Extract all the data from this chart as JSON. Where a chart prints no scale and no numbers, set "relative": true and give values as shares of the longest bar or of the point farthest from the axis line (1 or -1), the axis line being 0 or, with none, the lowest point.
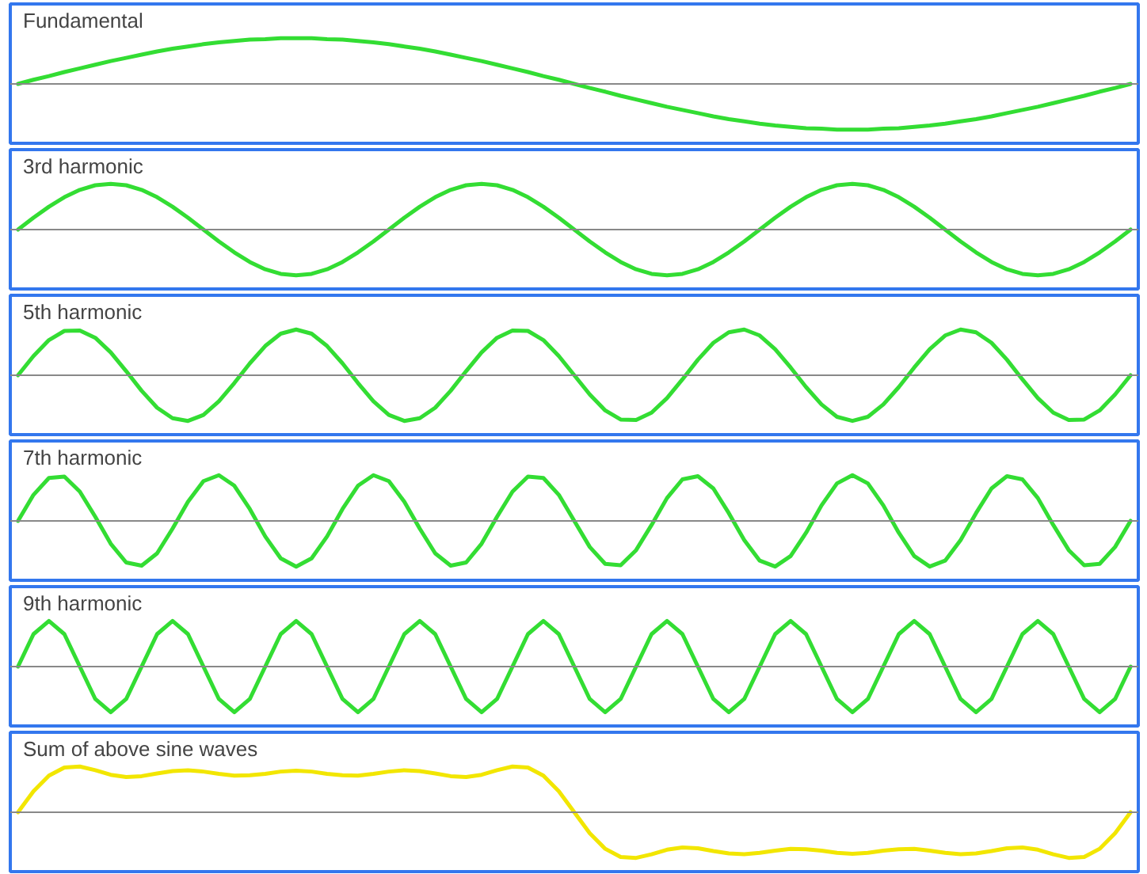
{
  "chart_data": [
    {
      "type": "line",
      "title": "Fundamental",
      "relative": true,
      "categories": [
        null,
        null,
        null,
        null,
        null,
        null,
        null,
        null,
        null,
        null,
        null,
        null,
        null,
        null,
        null,
        null,
        null,
        null,
        null,
        null,
        null,
        null,
        null,
        null,
        null,
        null,
        null,
        null,
        null,
        null,
        null,
        null,
        null,
        null,
        null,
        null,
        null,
        null,
        null,
        null,
        null,
        null,
        null,
        null,
        null,
        null,
        null,
        null,
        null,
        null,
        null,
        null,
        null,
        null,
        null,
        null,
        null,
        null,
        null,
        null,
        null,
        null,
        null,
        null,
        null,
        null,
        null,
        null,
        null,
        null,
        null,
        null,
        null
      ],
      "series": [
        {
          "color": "#33dd33",
          "values": [
            0,
            0.09,
            0.17,
            0.26,
            0.34,
            0.42,
            0.5,
            0.57,
            0.64,
            0.71,
            0.77,
            0.82,
            0.87,
            0.91,
            0.94,
            0.97,
            0.98,
            1,
            1,
            1,
            0.98,
            0.97,
            0.94,
            0.91,
            0.87,
            0.82,
            0.77,
            0.71,
            0.64,
            0.57,
            0.5,
            0.42,
            0.34,
            0.26,
            0.17,
            0.09,
            0,
            -0.09,
            -0.17,
            -0.26,
            -0.34,
            -0.42,
            -0.5,
            -0.57,
            -0.64,
            -0.71,
            -0.77,
            -0.82,
            -0.87,
            -0.91,
            -0.94,
            -0.97,
            -0.98,
            -1,
            -1,
            -1,
            -0.98,
            -0.97,
            -0.94,
            -0.91,
            -0.87,
            -0.82,
            -0.77,
            -0.71,
            -0.64,
            -0.57,
            -0.5,
            -0.42,
            -0.34,
            -0.26,
            -0.17,
            -0.09,
            0
          ]
        }
      ]
    },
    {
      "type": "line",
      "title": "3rd harmonic",
      "relative": true,
      "categories": [
        null,
        null,
        null,
        null,
        null,
        null,
        null,
        null,
        null,
        null,
        null,
        null,
        null,
        null,
        null,
        null,
        null,
        null,
        null,
        null,
        null,
        null,
        null,
        null,
        null,
        null,
        null,
        null,
        null,
        null,
        null,
        null,
        null,
        null,
        null,
        null,
        null,
        null,
        null,
        null,
        null,
        null,
        null,
        null,
        null,
        null,
        null,
        null,
        null,
        null,
        null,
        null,
        null,
        null,
        null,
        null,
        null,
        null,
        null,
        null,
        null,
        null,
        null,
        null,
        null,
        null,
        null,
        null,
        null,
        null,
        null,
        null,
        null
      ],
      "series": [
        {
          "color": "#33dd33",
          "values": [
            0,
            0.26,
            0.5,
            0.71,
            0.87,
            0.97,
            1,
            0.97,
            0.87,
            0.71,
            0.5,
            0.26,
            0,
            -0.26,
            -0.5,
            -0.71,
            -0.87,
            -0.97,
            -1,
            -0.97,
            -0.87,
            -0.71,
            -0.5,
            -0.26,
            0,
            0.26,
            0.5,
            0.71,
            0.87,
            0.97,
            1,
            0.97,
            0.87,
            0.71,
            0.5,
            0.26,
            0,
            -0.26,
            -0.5,
            -0.71,
            -0.87,
            -0.97,
            -1,
            -0.97,
            -0.87,
            -0.71,
            -0.5,
            -0.26,
            0,
            0.26,
            0.5,
            0.71,
            0.87,
            0.97,
            1,
            0.97,
            0.87,
            0.71,
            0.5,
            0.26,
            0,
            -0.26,
            -0.5,
            -0.71,
            -0.87,
            -0.97,
            -1,
            -0.97,
            -0.87,
            -0.71,
            -0.5,
            -0.26,
            0
          ]
        }
      ]
    },
    {
      "type": "line",
      "title": "5th harmonic",
      "relative": true,
      "categories": [
        null,
        null,
        null,
        null,
        null,
        null,
        null,
        null,
        null,
        null,
        null,
        null,
        null,
        null,
        null,
        null,
        null,
        null,
        null,
        null,
        null,
        null,
        null,
        null,
        null,
        null,
        null,
        null,
        null,
        null,
        null,
        null,
        null,
        null,
        null,
        null,
        null,
        null,
        null,
        null,
        null,
        null,
        null,
        null,
        null,
        null,
        null,
        null,
        null,
        null,
        null,
        null,
        null,
        null,
        null,
        null,
        null,
        null,
        null,
        null,
        null,
        null,
        null,
        null,
        null,
        null,
        null,
        null,
        null,
        null,
        null,
        null,
        null
      ],
      "series": [
        {
          "color": "#33dd33",
          "values": [
            0,
            0.42,
            0.77,
            0.97,
            0.98,
            0.82,
            0.5,
            0.09,
            -0.34,
            -0.71,
            -0.94,
            -1,
            -0.87,
            -0.57,
            -0.17,
            0.26,
            0.64,
            0.91,
            1,
            0.91,
            0.64,
            0.26,
            -0.17,
            -0.57,
            -0.87,
            -1,
            -0.94,
            -0.71,
            -0.34,
            0.09,
            0.5,
            0.82,
            0.98,
            0.97,
            0.77,
            0.42,
            0,
            -0.42,
            -0.77,
            -0.97,
            -0.98,
            -0.82,
            -0.5,
            -0.09,
            0.34,
            0.71,
            0.94,
            1,
            0.87,
            0.57,
            0.17,
            -0.26,
            -0.64,
            -0.91,
            -1,
            -0.91,
            -0.64,
            -0.26,
            0.17,
            0.57,
            0.87,
            1,
            0.94,
            0.71,
            0.34,
            -0.09,
            -0.5,
            -0.82,
            -0.98,
            -0.97,
            -0.77,
            -0.42,
            0
          ]
        }
      ]
    },
    {
      "type": "line",
      "title": "7th harmonic",
      "relative": true,
      "categories": [
        null,
        null,
        null,
        null,
        null,
        null,
        null,
        null,
        null,
        null,
        null,
        null,
        null,
        null,
        null,
        null,
        null,
        null,
        null,
        null,
        null,
        null,
        null,
        null,
        null,
        null,
        null,
        null,
        null,
        null,
        null,
        null,
        null,
        null,
        null,
        null,
        null,
        null,
        null,
        null,
        null,
        null,
        null,
        null,
        null,
        null,
        null,
        null,
        null,
        null,
        null,
        null,
        null,
        null,
        null,
        null,
        null,
        null,
        null,
        null,
        null,
        null,
        null,
        null,
        null,
        null,
        null,
        null,
        null,
        null,
        null,
        null,
        null
      ],
      "series": [
        {
          "color": "#33dd33",
          "values": [
            0,
            0.57,
            0.94,
            0.97,
            0.64,
            0.09,
            -0.5,
            -0.91,
            -0.98,
            -0.71,
            -0.17,
            0.42,
            0.87,
            1,
            0.77,
            0.26,
            -0.34,
            -0.82,
            -1,
            -0.82,
            -0.34,
            0.26,
            0.77,
            1,
            0.87,
            0.42,
            -0.17,
            -0.71,
            -0.98,
            -0.91,
            -0.5,
            0.09,
            0.64,
            0.97,
            0.94,
            0.57,
            0,
            -0.57,
            -0.94,
            -0.97,
            -0.64,
            -0.09,
            0.5,
            0.91,
            0.98,
            0.71,
            0.17,
            -0.42,
            -0.87,
            -1,
            -0.77,
            -0.26,
            0.34,
            0.82,
            1,
            0.82,
            0.34,
            -0.26,
            -0.77,
            -1,
            -0.87,
            -0.42,
            0.17,
            0.71,
            0.98,
            0.91,
            0.5,
            -0.09,
            -0.64,
            -0.97,
            -0.94,
            -0.57,
            0
          ]
        }
      ]
    },
    {
      "type": "line",
      "title": "9th harmonic",
      "relative": true,
      "categories": [
        null,
        null,
        null,
        null,
        null,
        null,
        null,
        null,
        null,
        null,
        null,
        null,
        null,
        null,
        null,
        null,
        null,
        null,
        null,
        null,
        null,
        null,
        null,
        null,
        null,
        null,
        null,
        null,
        null,
        null,
        null,
        null,
        null,
        null,
        null,
        null,
        null,
        null,
        null,
        null,
        null,
        null,
        null,
        null,
        null,
        null,
        null,
        null,
        null,
        null,
        null,
        null,
        null,
        null,
        null,
        null,
        null,
        null,
        null,
        null,
        null,
        null,
        null,
        null,
        null,
        null,
        null,
        null,
        null,
        null,
        null,
        null,
        null
      ],
      "series": [
        {
          "color": "#33dd33",
          "values": [
            0,
            0.71,
            1,
            0.71,
            0,
            -0.71,
            -1,
            -0.71,
            0,
            0.71,
            1,
            0.71,
            0,
            -0.71,
            -1,
            -0.71,
            0,
            0.71,
            1,
            0.71,
            0,
            -0.71,
            -1,
            -0.71,
            0,
            0.71,
            1,
            0.71,
            0,
            -0.71,
            -1,
            -0.71,
            0,
            0.71,
            1,
            0.71,
            0,
            -0.71,
            -1,
            -0.71,
            0,
            0.71,
            1,
            0.71,
            0,
            -0.71,
            -1,
            -0.71,
            0,
            0.71,
            1,
            0.71,
            0,
            -0.71,
            -1,
            -0.71,
            0,
            0.71,
            1,
            0.71,
            0,
            -0.71,
            -1,
            -0.71,
            0,
            0.71,
            1,
            0.71,
            0,
            -0.71,
            -1,
            -0.71,
            0
          ]
        }
      ]
    },
    {
      "type": "line",
      "title": "Sum of above sine waves",
      "relative": true,
      "categories": [
        null,
        null,
        null,
        null,
        null,
        null,
        null,
        null,
        null,
        null,
        null,
        null,
        null,
        null,
        null,
        null,
        null,
        null,
        null,
        null,
        null,
        null,
        null,
        null,
        null,
        null,
        null,
        null,
        null,
        null,
        null,
        null,
        null,
        null,
        null,
        null,
        null,
        null,
        null,
        null,
        null,
        null,
        null,
        null,
        null,
        null,
        null,
        null,
        null,
        null,
        null,
        null,
        null,
        null,
        null,
        null,
        null,
        null,
        null,
        null,
        null,
        null,
        null,
        null,
        null,
        null,
        null,
        null,
        null,
        null,
        null,
        null,
        null
      ],
      "series": [
        {
          "color": "#f2e600",
          "values": [
            0,
            0.46,
            0.8,
            0.98,
            1,
            0.92,
            0.82,
            0.77,
            0.79,
            0.85,
            0.9,
            0.92,
            0.89,
            0.84,
            0.8,
            0.81,
            0.84,
            0.89,
            0.91,
            0.89,
            0.84,
            0.81,
            0.8,
            0.84,
            0.89,
            0.92,
            0.9,
            0.85,
            0.79,
            0.77,
            0.82,
            0.92,
            1,
            0.98,
            0.8,
            0.46,
            0,
            -0.46,
            -0.8,
            -0.98,
            -1,
            -0.92,
            -0.82,
            -0.77,
            -0.79,
            -0.85,
            -0.9,
            -0.92,
            -0.89,
            -0.84,
            -0.8,
            -0.81,
            -0.84,
            -0.89,
            -0.91,
            -0.89,
            -0.84,
            -0.81,
            -0.8,
            -0.84,
            -0.89,
            -0.92,
            -0.9,
            -0.85,
            -0.79,
            -0.77,
            -0.82,
            -0.92,
            -1,
            -0.98,
            -0.8,
            -0.46,
            0
          ]
        }
      ]
    }
  ]
}
